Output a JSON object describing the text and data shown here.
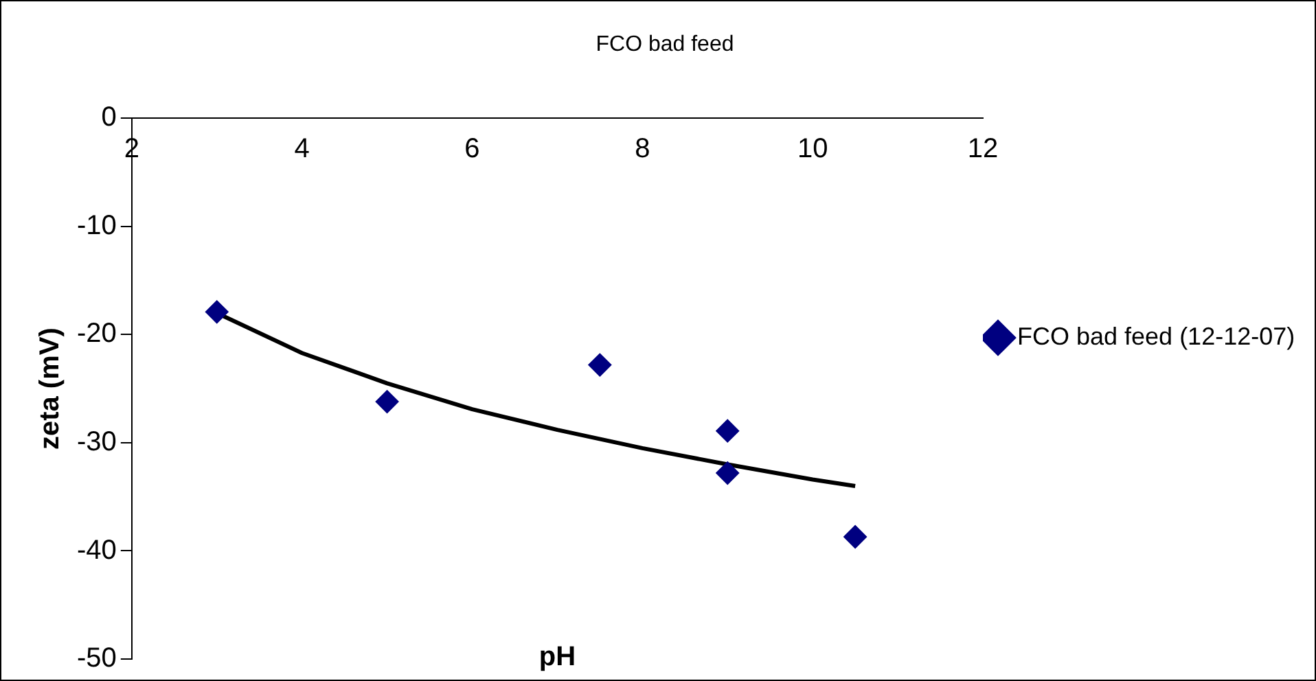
{
  "chart_data": {
    "type": "scatter",
    "title": "FCO bad feed",
    "xlabel": "pH",
    "ylabel": "zeta (mV)",
    "xlim": [
      2,
      12
    ],
    "xticks": [
      2,
      4,
      6,
      8,
      10,
      12
    ],
    "ylim": [
      -50,
      0
    ],
    "yticks": [
      -50,
      -40,
      -30,
      -20,
      -10,
      0
    ],
    "grid": false,
    "legend": "right",
    "marker": "diamond",
    "series": [
      {
        "name": "FCO bad feed (12-12-07)",
        "color": "#000080",
        "x": [
          3,
          5,
          7.5,
          9,
          9,
          10.5
        ],
        "values": [
          -17.9,
          -26.2,
          -22.8,
          -28.9,
          -32.8,
          -38.7
        ]
      },
      {
        "type": "line",
        "color": "#000000",
        "marker": "none",
        "x": [
          3,
          4,
          5,
          6,
          7,
          8,
          9,
          10,
          10.5
        ],
        "values": [
          -18,
          -21.7,
          -24.5,
          -26.9,
          -28.8,
          -30.5,
          -32,
          -33.4,
          -34
        ]
      }
    ]
  }
}
